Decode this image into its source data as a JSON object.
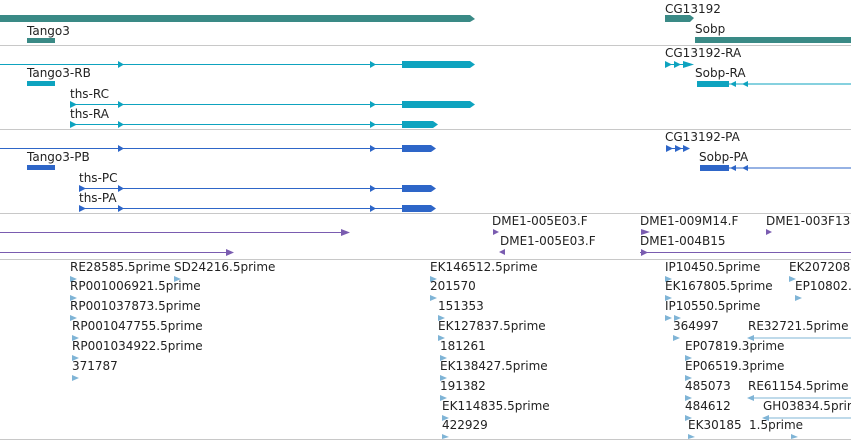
{
  "colors": {
    "gene": "#3a8a86",
    "rna": "#0ea3bf",
    "protein": "#2e66c8",
    "clone": "#7a5cb0",
    "est": "#7fb4d6",
    "divider": "#c8c8c8",
    "text": "#222222"
  },
  "tracks": {
    "gene": {
      "labels": [
        "Tango3",
        "CG13192",
        "Sobp"
      ]
    },
    "transcript": {
      "labels": [
        "Tango3-RB",
        "ths-RC",
        "ths-RA",
        "CG13192-RA",
        "Sobp-RA"
      ]
    },
    "translation": {
      "labels": [
        "Tango3-PB",
        "ths-PC",
        "ths-PA",
        "CG13192-PA",
        "Sobp-PA"
      ]
    },
    "clone": {
      "labels": [
        "DME1-005E03.F",
        "DME1-005E03.F",
        "DME1-009M14.F",
        "DME1-004B15",
        "DME1-003F13"
      ]
    },
    "est": {
      "labels": [
        "RE28585.5prime",
        "SD24216.5prime",
        "RP001006921.5prime",
        "RP001037873.5prime",
        "RP001047755.5prime",
        "RP001034922.5prime",
        "371787",
        "EK146512.5prime",
        "201570",
        "151353",
        "EK127837.5prime",
        "181261",
        "EK138427.5prime",
        "191382",
        "EK114835.5prime",
        "422929",
        "IP10450.5prime",
        "EK207208",
        "EK167805.5prime",
        "EP10802.",
        "IP10550.5prime",
        "364997",
        "RE32721.5prime",
        "EP07819.3prime",
        "EP06519.3prime",
        "485073",
        "RE61154.5prime",
        "484612",
        "GH03834.5prime",
        "EK30185",
        "1.5prime"
      ]
    }
  }
}
